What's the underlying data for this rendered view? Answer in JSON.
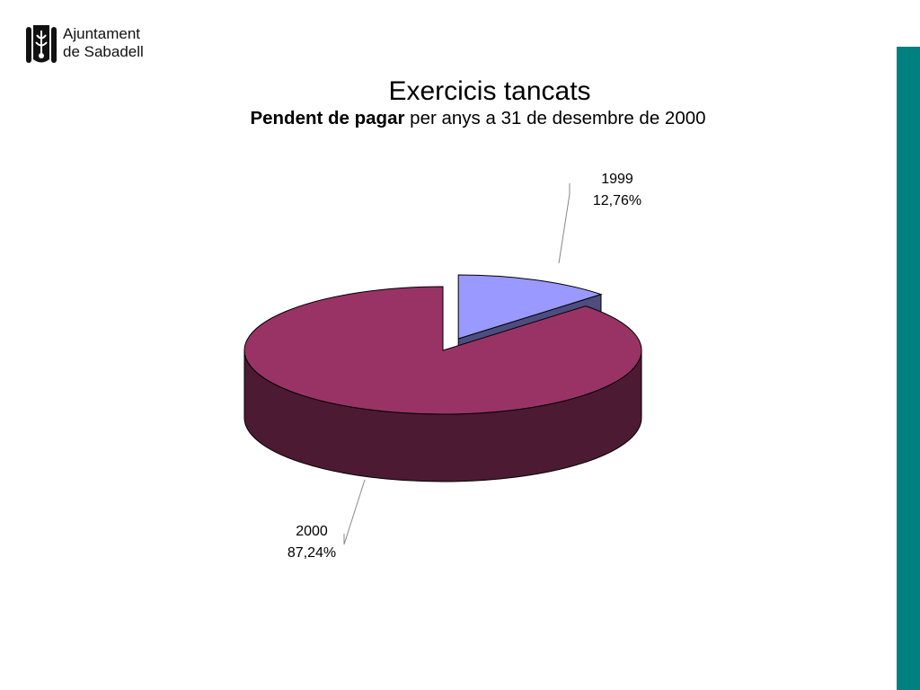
{
  "logo": {
    "line1": "Ajuntament",
    "line2": "de Sabadell",
    "icon": "sabadell-shield-icon"
  },
  "header": {
    "title": "Exercicis tancats",
    "subtitle_bold": "Pendent de pagar",
    "subtitle_rest": " per anys a 31 de desembre de 2000"
  },
  "colors": {
    "accent_bar": "#008080",
    "slice_1999_top": "#9999FF",
    "slice_1999_side": "#4D4D80",
    "slice_2000_top": "#993366",
    "slice_2000_side": "#4D1A33"
  },
  "chart_data": {
    "type": "pie",
    "style": "3d-exploded",
    "title": "Exercicis tancats",
    "subtitle": "Pendent de pagar per anys a 31 de desembre de 2000",
    "slices": [
      {
        "category": "1999",
        "value": 12.76,
        "label": "12,76%",
        "color": "#9999FF",
        "exploded": true
      },
      {
        "category": "2000",
        "value": 87.24,
        "label": "87,24%",
        "color": "#993366",
        "exploded": false
      }
    ]
  }
}
